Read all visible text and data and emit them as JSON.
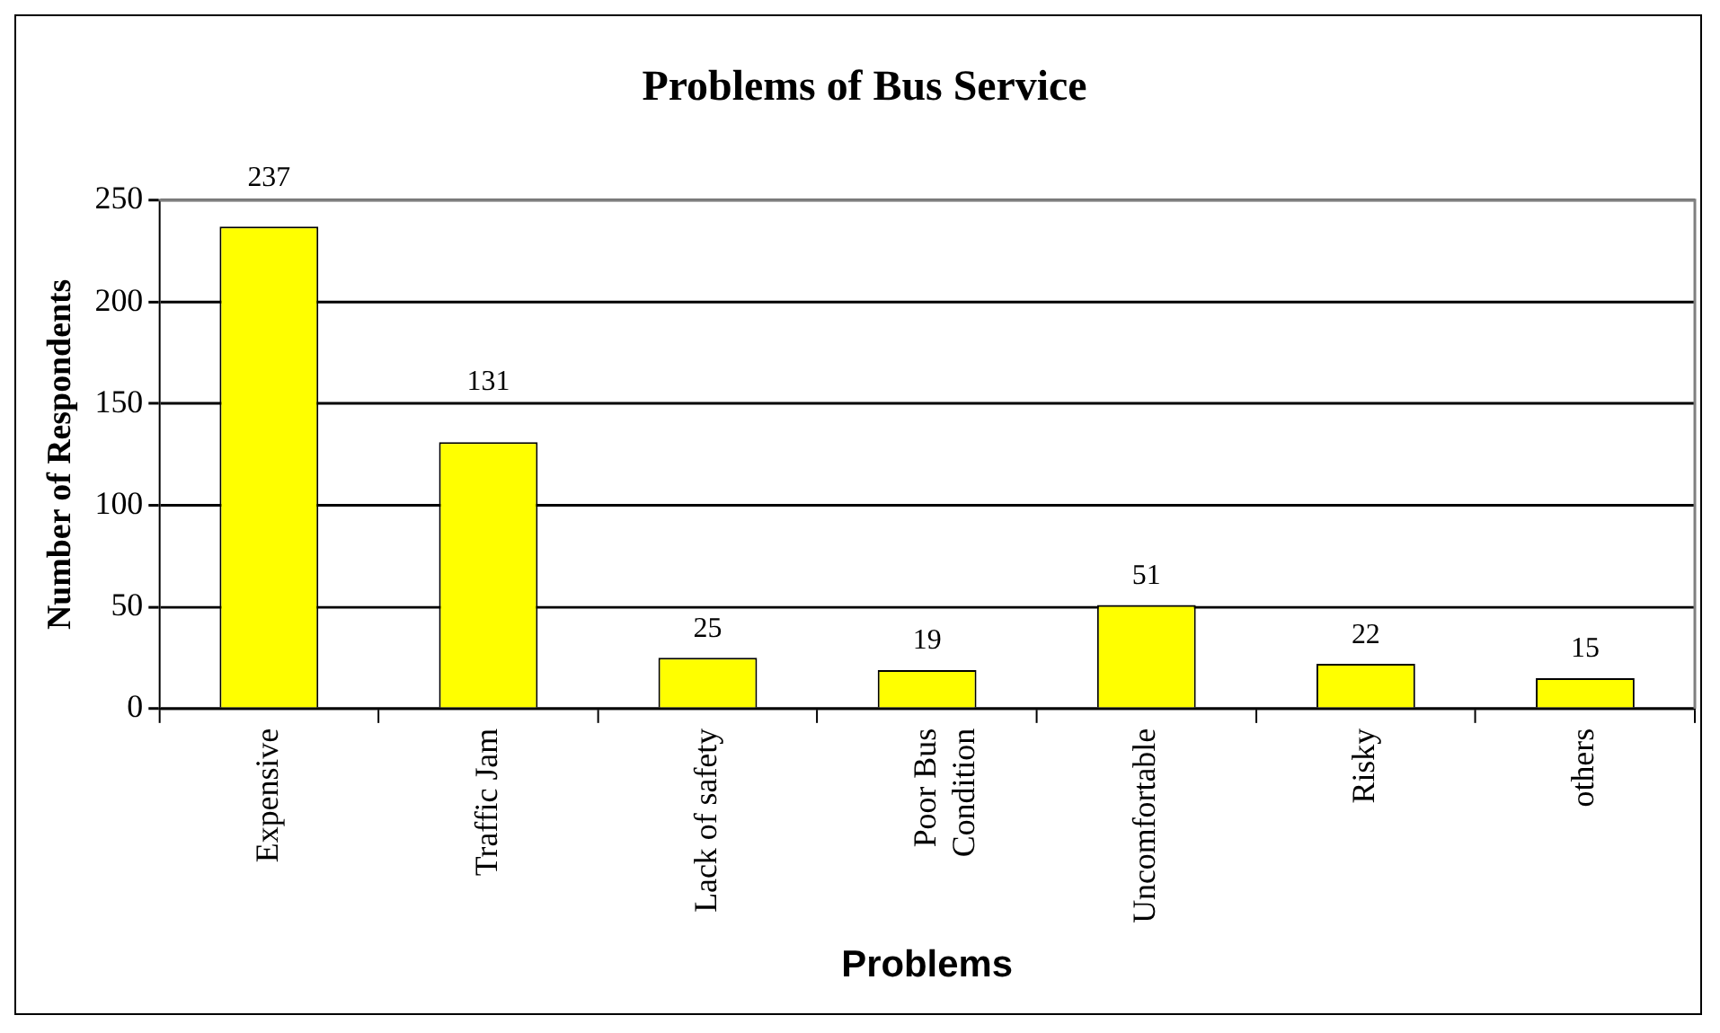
{
  "chart_data": {
    "type": "bar",
    "title": "Problems of Bus Service",
    "xlabel": "Problems",
    "ylabel": "Number of Respondents",
    "categories": [
      "Expensive",
      "Traffic Jam",
      "Lack of safety",
      "Poor Bus Condition",
      "Uncomfortable",
      "Risky",
      "others"
    ],
    "values": [
      237,
      131,
      25,
      19,
      51,
      22,
      15
    ],
    "color": "#ffff00",
    "ylim": [
      0,
      250
    ],
    "yticks": [
      0,
      50,
      100,
      150,
      200,
      250
    ],
    "grid": "y",
    "data_labels": true
  }
}
